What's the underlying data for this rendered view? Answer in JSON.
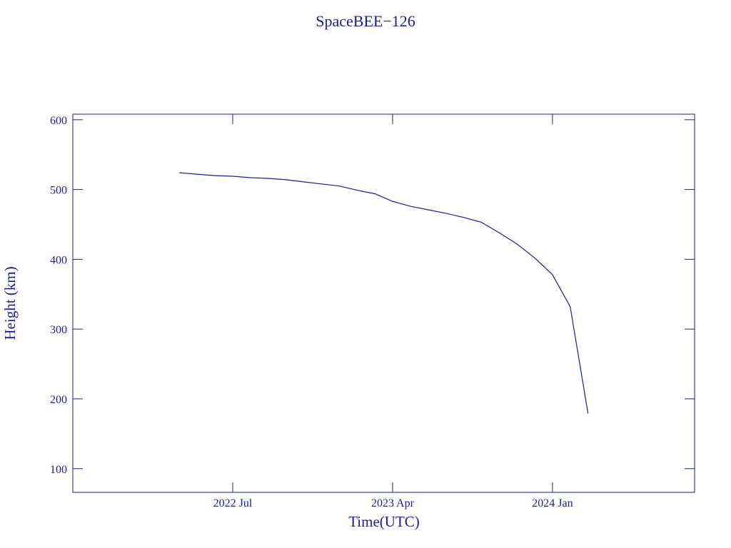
{
  "chart_data": {
    "type": "line",
    "title": "SpaceBEE−126",
    "x_label": "Time(UTC)",
    "y_label": "Height (km)",
    "color": "#1b1b9c",
    "x": [
      "2022-04",
      "2022-05",
      "2022-06",
      "2022-07",
      "2022-08",
      "2022-09",
      "2022-10",
      "2022-11",
      "2022-12",
      "2023-01",
      "2023-02",
      "2023-03",
      "2023-04",
      "2023-05",
      "2023-06",
      "2023-07",
      "2023-08",
      "2023-09",
      "2023-10",
      "2023-11",
      "2023-12",
      "2024-01",
      "2024-02",
      "2024-03"
    ],
    "values": [
      524,
      522,
      520,
      519,
      517,
      516,
      514,
      511,
      508,
      505,
      499,
      494,
      483,
      476,
      471,
      466,
      460,
      453,
      438,
      422,
      402,
      378,
      332,
      179
    ],
    "xlim": [
      "2021-10",
      "2024-09"
    ],
    "xticks": [
      {
        "value": "2022-07",
        "label": "2022 Jul"
      },
      {
        "value": "2023-04",
        "label": "2023 Apr"
      },
      {
        "value": "2024-01",
        "label": "2024 Jan"
      }
    ],
    "ylim": [
      66,
      608
    ],
    "yticks": [
      100,
      200,
      300,
      400,
      500,
      600
    ]
  }
}
